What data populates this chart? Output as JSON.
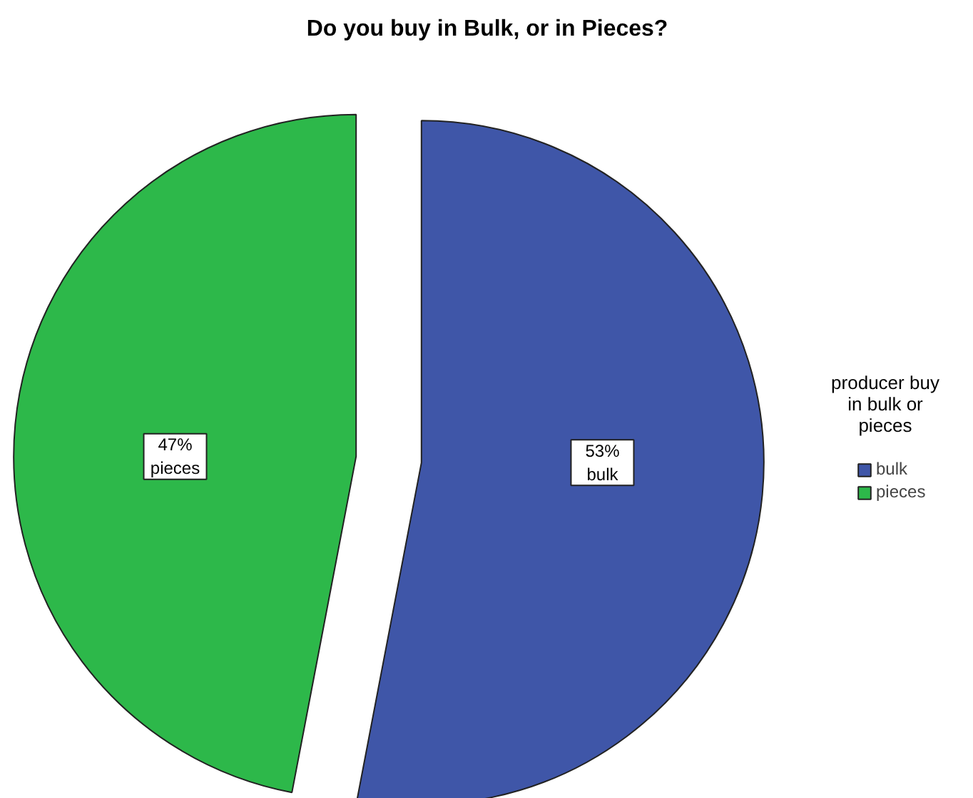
{
  "chart_data": {
    "type": "pie",
    "title": "Do you buy in Bulk, or in Pieces?",
    "legend_title": "producer buy\nin bulk or\npieces",
    "categories": [
      "bulk",
      "pieces"
    ],
    "values": [
      53,
      47
    ],
    "colors": [
      "#3f56a8",
      "#2db84a"
    ],
    "value_labels": [
      "53%",
      "47%"
    ],
    "legend": "right"
  }
}
